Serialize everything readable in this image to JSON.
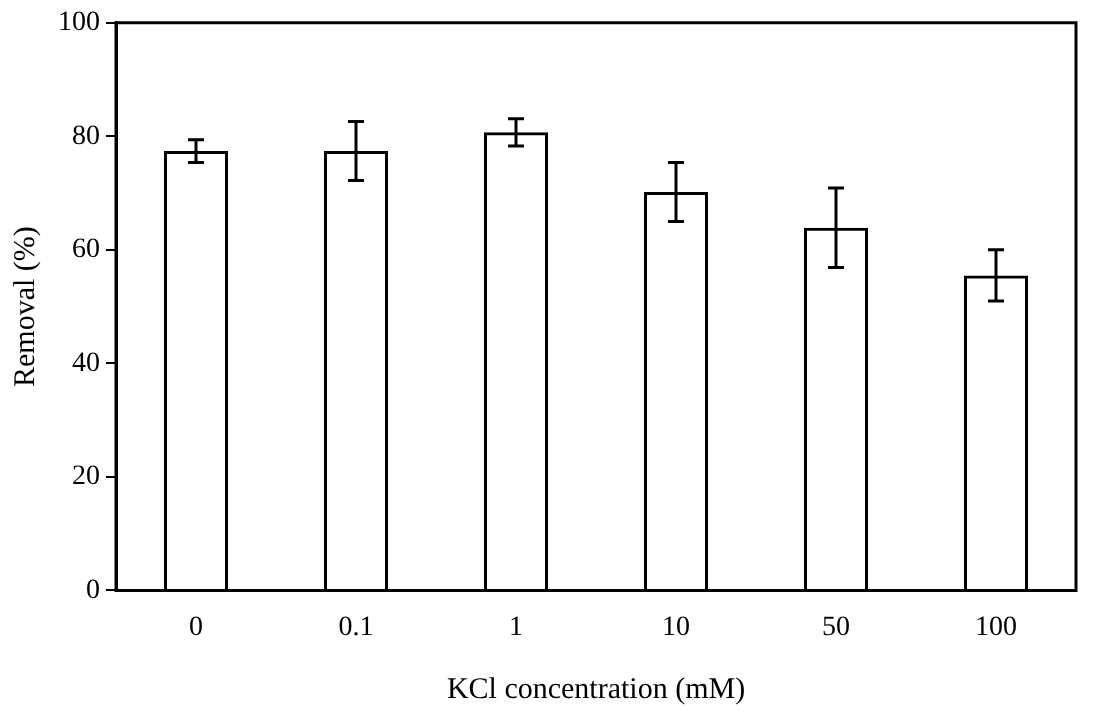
{
  "chart_data": {
    "type": "bar",
    "xlabel": "KCl concentration (mM)",
    "ylabel": "Removal (%)",
    "categories": [
      "0",
      "0.1",
      "1",
      "10",
      "50",
      "100"
    ],
    "values": [
      77.4,
      77.4,
      80.7,
      70.2,
      63.9,
      55.5
    ],
    "errors": [
      2,
      5.2,
      2.4,
      5.2,
      7,
      4.5
    ],
    "color": "#000000",
    "ylim": [
      0,
      100
    ],
    "yticks": [
      0,
      20,
      40,
      60,
      80,
      100
    ],
    "grid": false,
    "legend": false
  }
}
